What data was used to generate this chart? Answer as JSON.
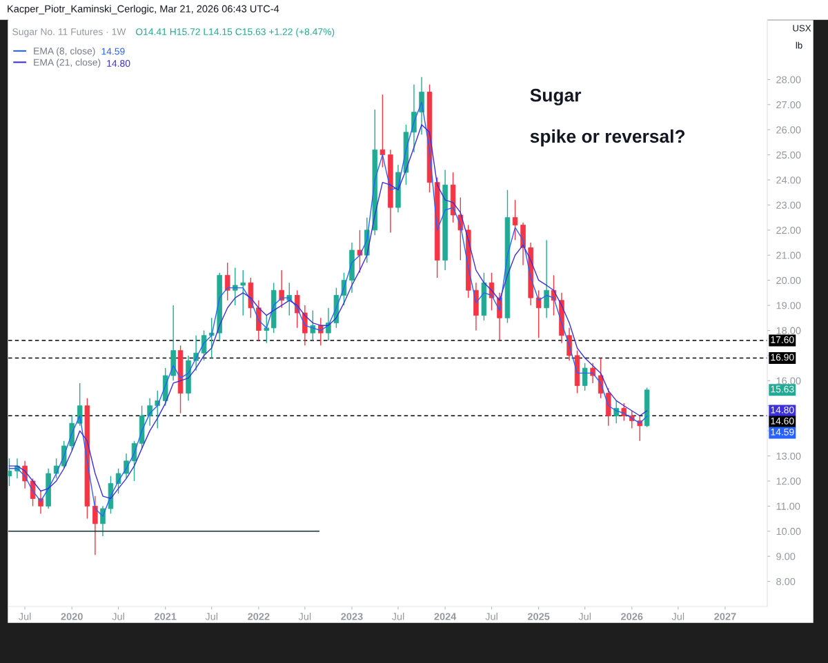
{
  "chart_data": {
    "type": "candlestick",
    "title": "Sugar",
    "subtitle": "spike or reversal?",
    "annotations": [
      "Kacper_Piotr_Kaminski_Cerlogic, Mar 21, 2026 06:43 UTC-4",
      "Sugar No. 11 Futures · 1W",
      "O14.41 H15.72 L14.15 C15.63 +1.22 (+8.47%)",
      "USX",
      "lb",
      "14.59",
      "14.80",
      "15.63",
      "14.80",
      "14.59"
    ],
    "x": [
      "2019-05",
      "2019-06",
      "2019-07",
      "2019-08",
      "2019-09",
      "2019-10",
      "2019-11",
      "2019-12",
      "2020-01",
      "2020-02",
      "2020-03",
      "2020-04",
      "2020-05",
      "2020-06",
      "2020-07",
      "2020-08",
      "2020-09",
      "2020-10",
      "2020-11",
      "2020-12",
      "2021-01",
      "2021-02",
      "2021-03",
      "2021-04",
      "2021-05",
      "2021-06",
      "2021-07",
      "2021-08",
      "2021-09",
      "2021-10",
      "2021-11",
      "2021-12",
      "2022-01",
      "2022-02",
      "2022-03",
      "2022-04",
      "2022-05",
      "2022-06",
      "2022-07",
      "2022-08",
      "2022-09",
      "2022-10",
      "2022-11",
      "2022-12",
      "2023-01",
      "2023-02",
      "2023-03",
      "2023-04",
      "2023-05",
      "2023-06",
      "2023-07",
      "2023-08",
      "2023-09",
      "2023-10",
      "2023-11",
      "2023-12",
      "2024-01",
      "2024-02",
      "2024-03",
      "2024-04",
      "2024-05",
      "2024-06",
      "2024-07",
      "2024-08",
      "2024-09",
      "2024-10",
      "2024-11",
      "2024-12",
      "2025-01",
      "2025-02",
      "2025-03",
      "2025-04",
      "2025-05",
      "2025-06",
      "2025-07",
      "2025-08",
      "2025-09",
      "2025-10",
      "2025-11",
      "2025-12",
      "2026-01",
      "2026-02",
      "2026-03"
    ],
    "ohlc": [
      [
        12.2,
        12.9,
        11.8,
        12.4
      ],
      [
        12.4,
        12.9,
        12.1,
        12.6
      ],
      [
        12.6,
        12.8,
        11.7,
        12.0
      ],
      [
        12.0,
        12.1,
        11.0,
        11.3
      ],
      [
        11.3,
        11.6,
        10.7,
        11.0
      ],
      [
        11.0,
        12.5,
        10.9,
        12.3
      ],
      [
        12.3,
        12.9,
        12.1,
        12.6
      ],
      [
        12.6,
        13.6,
        12.5,
        13.4
      ],
      [
        13.4,
        14.6,
        13.2,
        14.3
      ],
      [
        14.3,
        15.9,
        14.2,
        15.0
      ],
      [
        15.0,
        15.3,
        10.5,
        11.0
      ],
      [
        11.0,
        11.4,
        9.05,
        10.3
      ],
      [
        10.3,
        11.0,
        9.8,
        10.9
      ],
      [
        10.9,
        12.2,
        10.7,
        11.9
      ],
      [
        11.9,
        12.5,
        11.5,
        12.3
      ],
      [
        12.3,
        13.1,
        12.1,
        12.8
      ],
      [
        12.8,
        13.6,
        12.0,
        13.5
      ],
      [
        13.5,
        15.0,
        13.3,
        14.6
      ],
      [
        14.6,
        15.3,
        14.2,
        15.0
      ],
      [
        15.0,
        15.6,
        14.1,
        15.2
      ],
      [
        15.2,
        16.5,
        15.0,
        16.2
      ],
      [
        16.2,
        19.0,
        16.0,
        17.2
      ],
      [
        17.2,
        17.4,
        14.7,
        15.5
      ],
      [
        15.5,
        17.0,
        15.2,
        16.8
      ],
      [
        16.8,
        17.8,
        16.4,
        17.1
      ],
      [
        17.1,
        18.0,
        16.8,
        17.8
      ],
      [
        17.8,
        18.5,
        16.9,
        17.9
      ],
      [
        17.9,
        20.3,
        17.6,
        20.2
      ],
      [
        20.2,
        20.7,
        19.2,
        19.6
      ],
      [
        19.6,
        20.5,
        19.0,
        19.8
      ],
      [
        19.8,
        20.4,
        18.6,
        19.9
      ],
      [
        19.9,
        20.1,
        18.5,
        18.9
      ],
      [
        18.9,
        19.2,
        17.6,
        18.0
      ],
      [
        18.0,
        18.6,
        17.5,
        18.1
      ],
      [
        18.1,
        19.9,
        17.9,
        19.6
      ],
      [
        19.6,
        20.4,
        18.9,
        19.2
      ],
      [
        19.2,
        19.9,
        18.6,
        19.4
      ],
      [
        19.4,
        19.6,
        18.1,
        18.7
      ],
      [
        18.7,
        19.0,
        17.4,
        17.9
      ],
      [
        17.9,
        18.8,
        17.6,
        18.2
      ],
      [
        18.2,
        18.5,
        17.4,
        17.9
      ],
      [
        17.9,
        18.9,
        17.6,
        18.3
      ],
      [
        18.3,
        19.7,
        18.1,
        19.4
      ],
      [
        19.4,
        20.3,
        19.0,
        20.0
      ],
      [
        20.0,
        21.5,
        19.5,
        21.2
      ],
      [
        21.2,
        22.0,
        20.3,
        21.0
      ],
      [
        21.0,
        22.5,
        20.7,
        22.0
      ],
      [
        22.0,
        26.8,
        21.8,
        25.2
      ],
      [
        25.2,
        27.4,
        24.5,
        25.0
      ],
      [
        25.0,
        25.2,
        21.9,
        22.9
      ],
      [
        22.9,
        24.6,
        22.7,
        24.3
      ],
      [
        24.3,
        26.2,
        23.8,
        25.9
      ],
      [
        25.9,
        27.8,
        25.1,
        26.7
      ],
      [
        26.7,
        28.1,
        25.8,
        27.5
      ],
      [
        27.5,
        27.8,
        23.5,
        23.9
      ],
      [
        23.9,
        24.1,
        20.1,
        20.8
      ],
      [
        20.8,
        24.4,
        20.4,
        23.8
      ],
      [
        23.8,
        24.3,
        22.3,
        22.6
      ],
      [
        22.6,
        23.3,
        20.8,
        22.0
      ],
      [
        22.0,
        22.2,
        19.3,
        19.6
      ],
      [
        19.6,
        19.9,
        18.0,
        18.6
      ],
      [
        18.6,
        20.3,
        18.4,
        19.9
      ],
      [
        19.9,
        20.3,
        18.8,
        19.3
      ],
      [
        19.3,
        19.5,
        17.6,
        18.5
      ],
      [
        18.5,
        23.6,
        18.3,
        22.5
      ],
      [
        22.5,
        23.2,
        21.6,
        22.2
      ],
      [
        22.2,
        22.3,
        20.6,
        21.3
      ],
      [
        21.3,
        21.5,
        19.0,
        19.3
      ],
      [
        19.3,
        19.6,
        17.7,
        18.9
      ],
      [
        18.9,
        21.6,
        18.5,
        19.6
      ],
      [
        19.6,
        20.2,
        18.6,
        19.2
      ],
      [
        19.2,
        19.5,
        17.5,
        17.8
      ],
      [
        17.8,
        18.1,
        16.8,
        17.0
      ],
      [
        17.0,
        17.2,
        15.5,
        15.8
      ],
      [
        15.8,
        16.7,
        15.6,
        16.5
      ],
      [
        16.5,
        16.7,
        15.9,
        16.2
      ],
      [
        16.2,
        16.9,
        15.3,
        15.5
      ],
      [
        15.5,
        15.7,
        14.2,
        14.6
      ],
      [
        14.6,
        15.2,
        14.3,
        14.9
      ],
      [
        14.9,
        15.1,
        14.4,
        14.6
      ],
      [
        14.6,
        14.8,
        14.1,
        14.4
      ],
      [
        14.4,
        14.6,
        13.6,
        14.2
      ],
      [
        14.2,
        15.72,
        14.15,
        15.63
      ]
    ],
    "colors": [
      "#22ab94",
      "#22ab94",
      "#f23645",
      "#f23645",
      "#f23645",
      "#22ab94",
      "#22ab94",
      "#22ab94",
      "#22ab94",
      "#22ab94",
      "#f23645",
      "#f23645",
      "#22ab94",
      "#22ab94",
      "#22ab94",
      "#22ab94",
      "#22ab94",
      "#22ab94",
      "#22ab94",
      "#22ab94",
      "#22ab94",
      "#22ab94",
      "#f23645",
      "#22ab94",
      "#22ab94",
      "#22ab94",
      "#22ab94",
      "#22ab94",
      "#f23645",
      "#22ab94",
      "#22ab94",
      "#f23645",
      "#f23645",
      "#22ab94",
      "#22ab94",
      "#f23645",
      "#22ab94",
      "#f23645",
      "#f23645",
      "#22ab94",
      "#f23645",
      "#22ab94",
      "#22ab94",
      "#22ab94",
      "#22ab94",
      "#f23645",
      "#22ab94",
      "#22ab94",
      "#f23645",
      "#f23645",
      "#22ab94",
      "#22ab94",
      "#22ab94",
      "#22ab94",
      "#f23645",
      "#f23645",
      "#22ab94",
      "#f23645",
      "#f23645",
      "#f23645",
      "#f23645",
      "#22ab94",
      "#f23645",
      "#f23645",
      "#22ab94",
      "#f23645",
      "#f23645",
      "#f23645",
      "#f23645",
      "#22ab94",
      "#f23645",
      "#f23645",
      "#f23645",
      "#f23645",
      "#22ab94",
      "#f23645",
      "#f23645",
      "#f23645",
      "#22ab94",
      "#f23645",
      "#f23645",
      "#f23645",
      "#22ab94"
    ],
    "series": [
      {
        "type": "line",
        "name": "EMA (8, close)",
        "color": "#2962ff",
        "values": [
          12.5,
          12.5,
          12.2,
          11.6,
          11.2,
          11.7,
          12.3,
          13.0,
          13.9,
          14.6,
          12.8,
          10.9,
          10.6,
          11.4,
          12.0,
          12.5,
          13.1,
          14.0,
          14.7,
          15.0,
          15.8,
          16.6,
          16.1,
          16.3,
          16.9,
          17.5,
          17.8,
          19.3,
          19.7,
          19.7,
          19.7,
          19.2,
          18.4,
          18.1,
          19.0,
          19.3,
          19.3,
          18.9,
          18.2,
          18.1,
          18.0,
          18.2,
          18.9,
          19.7,
          20.7,
          21.0,
          21.6,
          24.0,
          25.0,
          23.6,
          23.7,
          25.2,
          26.3,
          27.1,
          25.2,
          22.0,
          22.8,
          22.9,
          22.2,
          20.5,
          19.1,
          19.5,
          19.4,
          18.8,
          21.0,
          22.1,
          21.6,
          20.1,
          19.2,
          19.4,
          19.3,
          18.3,
          17.4,
          16.3,
          16.3,
          16.3,
          15.9,
          15.0,
          14.8,
          14.7,
          14.5,
          14.3,
          14.59
        ]
      },
      {
        "type": "line",
        "name": "EMA (21, close)",
        "color": "#3b30d9",
        "values": [
          12.6,
          12.6,
          12.4,
          12.0,
          11.6,
          11.7,
          12.0,
          12.5,
          13.2,
          14.0,
          13.6,
          12.3,
          11.4,
          11.3,
          11.7,
          12.1,
          12.6,
          13.3,
          14.0,
          14.5,
          15.1,
          15.9,
          16.0,
          16.1,
          16.5,
          17.0,
          17.3,
          18.2,
          18.9,
          19.3,
          19.5,
          19.3,
          18.9,
          18.6,
          18.8,
          19.0,
          19.2,
          19.0,
          18.6,
          18.3,
          18.2,
          18.2,
          18.5,
          19.1,
          19.8,
          20.4,
          21.0,
          22.6,
          23.9,
          23.8,
          23.6,
          24.4,
          25.3,
          26.2,
          25.9,
          23.8,
          23.2,
          23.1,
          22.7,
          21.6,
          20.4,
          19.9,
          19.6,
          19.2,
          20.2,
          21.0,
          21.4,
          20.8,
          20.0,
          19.8,
          19.6,
          19.0,
          18.3,
          17.3,
          16.9,
          16.6,
          16.3,
          15.6,
          15.2,
          15.0,
          14.8,
          14.6,
          14.8
        ]
      },
      {
        "type": "line",
        "color": "#0b2f2f",
        "x": [
          "2019-04-27",
          "2022-08-25"
        ],
        "values": [
          10,
          10
        ]
      }
    ],
    "ref_lines": [
      {
        "axis": "y",
        "value": 17.6,
        "label": "17.60",
        "color": "#000000",
        "line_style": "dashed"
      },
      {
        "axis": "y",
        "value": 16.9,
        "label": "16.90",
        "color": "#000000",
        "line_style": "dashed"
      },
      {
        "axis": "y",
        "value": 14.6,
        "label": "14.60",
        "color": "#000000",
        "line_style": "dashed"
      }
    ],
    "xlim": [
      "2019-04-27",
      "2027-06-15"
    ],
    "xticks": [
      {
        "value": "2019-07",
        "label": "Jul"
      },
      {
        "value": "2020-01",
        "label": "2020"
      },
      {
        "value": "2020-07",
        "label": "Jul"
      },
      {
        "value": "2021-01",
        "label": "2021"
      },
      {
        "value": "2021-07",
        "label": "Jul"
      },
      {
        "value": "2022-01",
        "label": "2022"
      },
      {
        "value": "2022-07",
        "label": "Jul"
      },
      {
        "value": "2023-01",
        "label": "2023"
      },
      {
        "value": "2023-07",
        "label": "Jul"
      },
      {
        "value": "2024-01",
        "label": "2024"
      },
      {
        "value": "2024-07",
        "label": "Jul"
      },
      {
        "value": "2025-01",
        "label": "2025"
      },
      {
        "value": "2025-07",
        "label": "Jul"
      },
      {
        "value": "2026-01",
        "label": "2026"
      },
      {
        "value": "2026-07",
        "label": "Jul"
      },
      {
        "value": "2027-01",
        "label": "2027"
      }
    ],
    "ylim": [
      7.0,
      30.4
    ],
    "yticks": [
      {
        "value": 8,
        "label": "8.00"
      },
      {
        "value": 9,
        "label": "9.00"
      },
      {
        "value": 10,
        "label": "10.00"
      },
      {
        "value": 11,
        "label": "11.00"
      },
      {
        "value": 12,
        "label": "12.00"
      },
      {
        "value": 13,
        "label": "13.00"
      },
      {
        "value": 14,
        "label": null
      },
      {
        "value": 15,
        "label": null
      },
      {
        "value": 16,
        "label": "16.00"
      },
      {
        "value": 17,
        "label": null
      },
      {
        "value": 18,
        "label": "18.00"
      },
      {
        "value": 19,
        "label": "19.00"
      },
      {
        "value": 20,
        "label": "20.00"
      },
      {
        "value": 21,
        "label": "21.00"
      },
      {
        "value": 22,
        "label": "22.00"
      },
      {
        "value": 23,
        "label": "23.00"
      },
      {
        "value": 24,
        "label": "24.00"
      },
      {
        "value": 25,
        "label": "25.00"
      },
      {
        "value": 26,
        "label": "26.00"
      },
      {
        "value": 27,
        "label": "27.00"
      },
      {
        "value": 28,
        "label": "28.00"
      }
    ],
    "legend": "top left"
  }
}
